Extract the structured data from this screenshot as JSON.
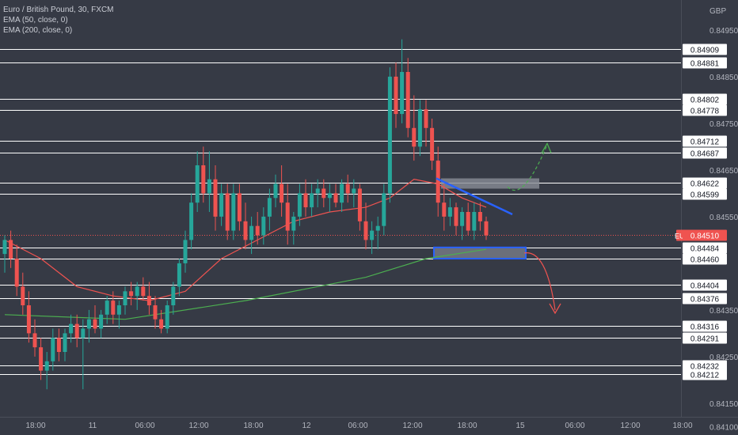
{
  "legend": {
    "symbol_line": "Euro / British Pound, 30, FXCM",
    "ema50_line": "EMA (50, close, 0)",
    "ema200_line": "EMA (200, close, 0)"
  },
  "chart_data": {
    "type": "candlestick",
    "symbol": "EURGBP",
    "currency": "GBP",
    "current_price": "0.84510",
    "ylim": [
      0.841,
      0.85
    ],
    "y_ticks": [
      "0.84950",
      "0.84850",
      "0.84750",
      "0.84650",
      "0.84550",
      "0.84350",
      "0.84250",
      "0.84150",
      "0.84100"
    ],
    "x_ticks": [
      "18:00",
      "11",
      "06:00",
      "12:00",
      "18:00",
      "12",
      "06:00",
      "12:00",
      "18:00",
      "15",
      "06:00",
      "12:00",
      "18:00"
    ],
    "levels": [
      "0.84909",
      "0.84881",
      "0.84802",
      "0.84778",
      "0.84712",
      "0.84687",
      "0.84622",
      "0.84599",
      "0.84484",
      "0.84460",
      "0.84404",
      "0.84376",
      "0.84316",
      "0.84291",
      "0.84232",
      "0.84212"
    ],
    "candles": [
      [
        0.8447,
        0.8451,
        0.8443,
        0.845
      ],
      [
        0.845,
        0.8452,
        0.8444,
        0.8446
      ],
      [
        0.8446,
        0.8449,
        0.8438,
        0.844
      ],
      [
        0.844,
        0.8443,
        0.8434,
        0.8436
      ],
      [
        0.8436,
        0.8439,
        0.8428,
        0.843
      ],
      [
        0.843,
        0.8433,
        0.8425,
        0.8427
      ],
      [
        0.8427,
        0.8429,
        0.842,
        0.8422
      ],
      [
        0.8422,
        0.8426,
        0.8418,
        0.8424
      ],
      [
        0.8424,
        0.8431,
        0.8422,
        0.8429
      ],
      [
        0.8429,
        0.8431,
        0.8424,
        0.8426
      ],
      [
        0.8426,
        0.8431,
        0.8424,
        0.843
      ],
      [
        0.843,
        0.8434,
        0.8428,
        0.8432
      ],
      [
        0.8432,
        0.8434,
        0.8427,
        0.8429
      ],
      [
        0.8429,
        0.8433,
        0.8418,
        0.8431
      ],
      [
        0.8431,
        0.8435,
        0.8428,
        0.8433
      ],
      [
        0.8433,
        0.8436,
        0.843,
        0.8431
      ],
      [
        0.8431,
        0.8435,
        0.8429,
        0.8434
      ],
      [
        0.8434,
        0.8438,
        0.8432,
        0.8437
      ],
      [
        0.8437,
        0.8439,
        0.8432,
        0.8434
      ],
      [
        0.8434,
        0.8437,
        0.8431,
        0.8436
      ],
      [
        0.8436,
        0.844,
        0.8434,
        0.8439
      ],
      [
        0.8439,
        0.8441,
        0.8436,
        0.8438
      ],
      [
        0.8438,
        0.8441,
        0.8435,
        0.844
      ],
      [
        0.844,
        0.8442,
        0.8437,
        0.8438
      ],
      [
        0.8438,
        0.8441,
        0.8434,
        0.8436
      ],
      [
        0.8436,
        0.8438,
        0.8431,
        0.8433
      ],
      [
        0.8433,
        0.8435,
        0.843,
        0.8431
      ],
      [
        0.8431,
        0.8437,
        0.843,
        0.8436
      ],
      [
        0.8436,
        0.8441,
        0.8434,
        0.844
      ],
      [
        0.844,
        0.8446,
        0.8438,
        0.8445
      ],
      [
        0.8445,
        0.8452,
        0.8443,
        0.845
      ],
      [
        0.845,
        0.846,
        0.8448,
        0.8458
      ],
      [
        0.8458,
        0.8469,
        0.8456,
        0.8466
      ],
      [
        0.8466,
        0.847,
        0.8458,
        0.846
      ],
      [
        0.846,
        0.8469,
        0.8456,
        0.8463
      ],
      [
        0.8463,
        0.8466,
        0.8452,
        0.8455
      ],
      [
        0.8455,
        0.8462,
        0.8453,
        0.846
      ],
      [
        0.846,
        0.8462,
        0.845,
        0.8452
      ],
      [
        0.8452,
        0.8462,
        0.845,
        0.846
      ],
      [
        0.846,
        0.8462,
        0.8452,
        0.8454
      ],
      [
        0.8454,
        0.8458,
        0.8448,
        0.845
      ],
      [
        0.845,
        0.8455,
        0.8447,
        0.8453
      ],
      [
        0.8453,
        0.8456,
        0.8449,
        0.8451
      ],
      [
        0.8451,
        0.8457,
        0.8449,
        0.8455
      ],
      [
        0.8455,
        0.8461,
        0.8452,
        0.8459
      ],
      [
        0.8459,
        0.8464,
        0.8457,
        0.8462
      ],
      [
        0.8462,
        0.8466,
        0.8455,
        0.8458
      ],
      [
        0.8458,
        0.8462,
        0.8449,
        0.8452
      ],
      [
        0.8452,
        0.8456,
        0.8449,
        0.8455
      ],
      [
        0.8455,
        0.8462,
        0.8453,
        0.846
      ],
      [
        0.846,
        0.8463,
        0.8455,
        0.8457
      ],
      [
        0.8457,
        0.8462,
        0.8455,
        0.846
      ],
      [
        0.846,
        0.8463,
        0.8457,
        0.8461
      ],
      [
        0.8461,
        0.8463,
        0.8457,
        0.8459
      ],
      [
        0.8459,
        0.8462,
        0.8456,
        0.846
      ],
      [
        0.846,
        0.8462,
        0.8457,
        0.8458
      ],
      [
        0.8458,
        0.8463,
        0.8456,
        0.8462
      ],
      [
        0.8462,
        0.8464,
        0.8458,
        0.846
      ],
      [
        0.846,
        0.8463,
        0.8457,
        0.8461
      ],
      [
        0.8461,
        0.8462,
        0.8452,
        0.8454
      ],
      [
        0.8454,
        0.8458,
        0.8448,
        0.845
      ],
      [
        0.845,
        0.8454,
        0.8447,
        0.8452
      ],
      [
        0.8452,
        0.8455,
        0.8448,
        0.8453
      ],
      [
        0.8453,
        0.8462,
        0.8451,
        0.846
      ],
      [
        0.846,
        0.8487,
        0.8458,
        0.8485
      ],
      [
        0.8485,
        0.8488,
        0.8474,
        0.8477
      ],
      [
        0.8477,
        0.8493,
        0.8475,
        0.8486
      ],
      [
        0.8486,
        0.8489,
        0.8472,
        0.8474
      ],
      [
        0.8474,
        0.8481,
        0.8467,
        0.847
      ],
      [
        0.847,
        0.848,
        0.8468,
        0.8478
      ],
      [
        0.8478,
        0.848,
        0.847,
        0.8474
      ],
      [
        0.8474,
        0.8476,
        0.8465,
        0.8467
      ],
      [
        0.8467,
        0.847,
        0.8455,
        0.8458
      ],
      [
        0.8458,
        0.8462,
        0.8452,
        0.8455
      ],
      [
        0.8455,
        0.8459,
        0.8453,
        0.8457
      ],
      [
        0.8457,
        0.8458,
        0.8451,
        0.8453
      ],
      [
        0.8453,
        0.8457,
        0.845,
        0.8456
      ],
      [
        0.8456,
        0.8458,
        0.8451,
        0.8452
      ],
      [
        0.8452,
        0.8458,
        0.845,
        0.8456
      ],
      [
        0.8456,
        0.8458,
        0.8452,
        0.8454
      ],
      [
        0.8454,
        0.8455,
        0.845,
        0.8451
      ]
    ],
    "ema50": [
      [
        0,
        0.845
      ],
      [
        6,
        0.8446
      ],
      [
        12,
        0.844
      ],
      [
        18,
        0.8438
      ],
      [
        24,
        0.8437
      ],
      [
        30,
        0.8439
      ],
      [
        36,
        0.8446
      ],
      [
        42,
        0.845
      ],
      [
        48,
        0.8454
      ],
      [
        54,
        0.8456
      ],
      [
        60,
        0.8457
      ],
      [
        64,
        0.8459
      ],
      [
        68,
        0.8463
      ],
      [
        72,
        0.8462
      ],
      [
        76,
        0.8459
      ],
      [
        80,
        0.8457
      ]
    ],
    "ema200": [
      [
        0,
        0.8434
      ],
      [
        20,
        0.8433
      ],
      [
        40,
        0.8437
      ],
      [
        60,
        0.8442
      ],
      [
        70,
        0.8446
      ],
      [
        80,
        0.8448
      ]
    ]
  },
  "colors": {
    "background": "#363a45",
    "up": "#26a69a",
    "down": "#ef5350",
    "ema50": "#ef5350",
    "ema200": "#4caf50",
    "level_line": "#ffffff",
    "axis_text": "#b2b5be",
    "blue_annotation": "#2962ff"
  }
}
